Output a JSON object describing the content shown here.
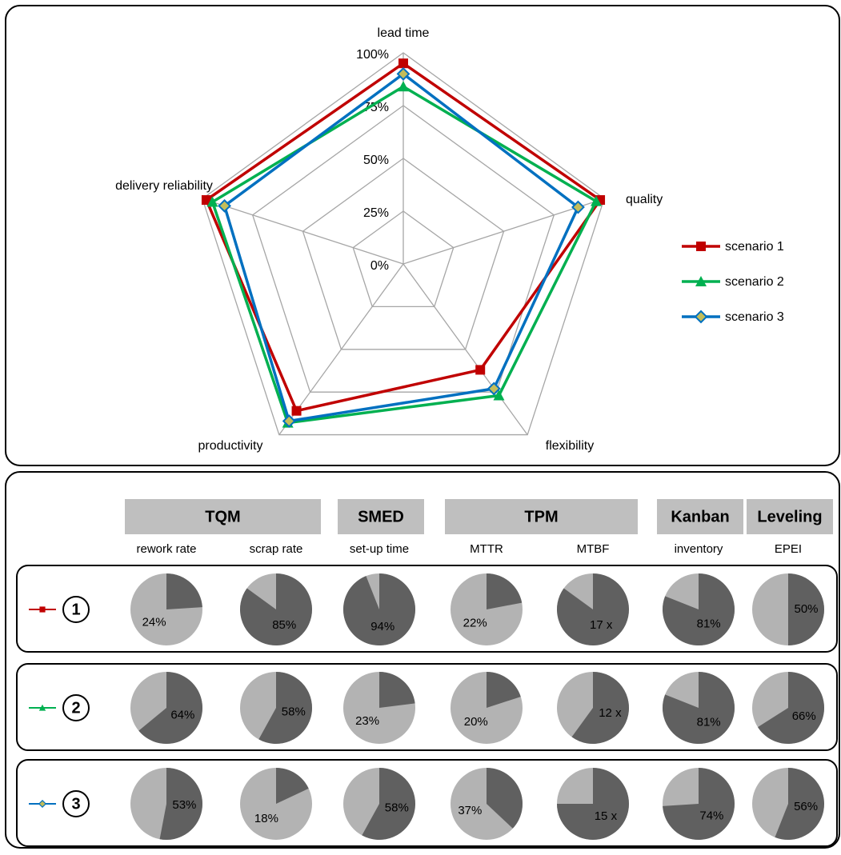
{
  "chart_data": [
    {
      "type": "radar",
      "axes": [
        "lead time",
        "quality",
        "flexibility",
        "productivity",
        "delivery reliability"
      ],
      "series": [
        {
          "name": "scenario 1",
          "color": "#c00000",
          "marker": "square",
          "values": [
            95,
            98,
            62,
            86,
            98
          ]
        },
        {
          "name": "scenario 2",
          "color": "#00b050",
          "marker": "triangle",
          "values": [
            84,
            96,
            77,
            93,
            95
          ]
        },
        {
          "name": "scenario 3",
          "color": "#0070c0",
          "marker": "diamond",
          "values": [
            90,
            87,
            73,
            92,
            89
          ]
        }
      ],
      "rlim": [
        0,
        100
      ],
      "rticks": [
        {
          "value": 0,
          "label": "0%"
        },
        {
          "value": 25,
          "label": "25%"
        },
        {
          "value": 50,
          "label": "50%"
        },
        {
          "value": 75,
          "label": "75%"
        },
        {
          "value": 100,
          "label": "100%"
        }
      ],
      "grid": true,
      "legend": "right"
    },
    {
      "type": "pie_grid",
      "groups": [
        {
          "name": "TQM",
          "metrics": [
            {
              "name": "rework rate",
              "max": 100
            },
            {
              "name": "scrap rate",
              "max": 100
            }
          ]
        },
        {
          "name": "SMED",
          "metrics": [
            {
              "name": "set-up time",
              "max": 100
            }
          ]
        },
        {
          "name": "TPM",
          "metrics": [
            {
              "name": "MTTR",
              "max": 100
            },
            {
              "name": "MTBF",
              "max": 20
            }
          ]
        },
        {
          "name": "Kanban",
          "metrics": [
            {
              "name": "inventory",
              "max": 100
            }
          ]
        },
        {
          "name": "Leveling",
          "metrics": [
            {
              "name": "EPEI",
              "max": 100
            }
          ]
        }
      ],
      "dark_color": "#606060",
      "light_color": "#b3b3b3",
      "rows": [
        {
          "label": "1",
          "values": [
            24,
            85,
            94,
            22,
            17,
            81,
            50
          ],
          "value_labels": [
            "24%",
            "85%",
            "94%",
            "22%",
            "17 x",
            "81%",
            "50%"
          ]
        },
        {
          "label": "2",
          "values": [
            64,
            58,
            23,
            20,
            12,
            81,
            66
          ],
          "value_labels": [
            "64%",
            "58%",
            "23%",
            "20%",
            "12 x",
            "81%",
            "66%"
          ]
        },
        {
          "label": "3",
          "values": [
            53,
            18,
            58,
            37,
            15,
            74,
            56
          ],
          "value_labels": [
            "53%",
            "18%",
            "58%",
            "37%",
            "15 x",
            "74%",
            "56%"
          ]
        }
      ]
    }
  ]
}
